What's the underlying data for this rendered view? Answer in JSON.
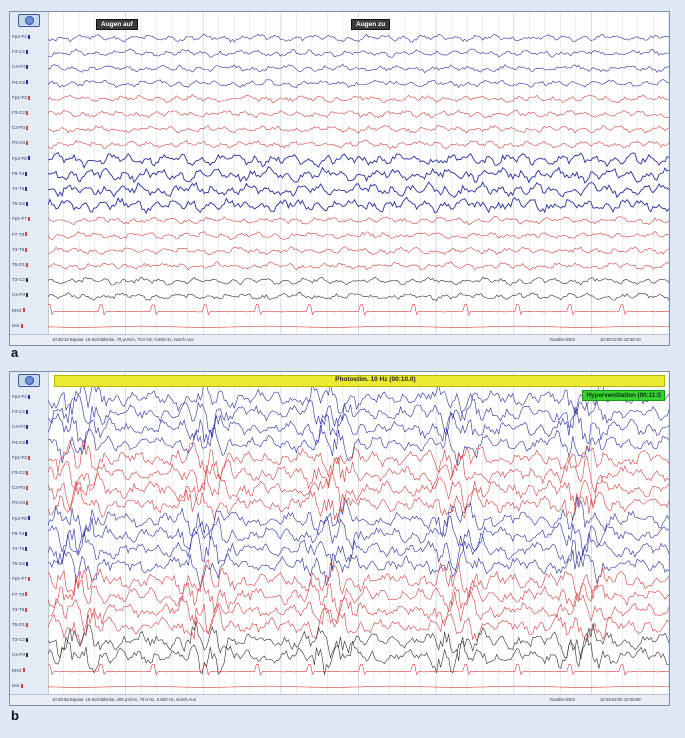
{
  "panel_a": {
    "label": "a",
    "markers": [
      {
        "label": "Augen auf"
      },
      {
        "label": "Augen zu"
      }
    ],
    "channels": [
      "Fp2-F4",
      "F4-C4",
      "C4-P4",
      "P4-O2",
      "Fp1-F3",
      "F3-C3",
      "C3-P3",
      "P3-O1",
      "Fp2-F8",
      "F8-T4",
      "T4-T6",
      "T6-O2",
      "Fp1-F7",
      "F7-T3",
      "T3-T5",
      "T5-O1",
      "T3-C3",
      "C3-P3",
      "EKG",
      "Del.",
      "Del.",
      "Photo Ref"
    ],
    "status_left": "10:30:10 Bipolar, 16 Seit./Blöcke, 70 µV/cm, 70.0 Hz, 0.500 Hz, Notch Aus",
    "status_mid": "Routine EEG",
    "status_right": "10:30:22:00   10:30:10"
  },
  "panel_b": {
    "label": "b",
    "photostim_label": "Photostim. 10 Hz (00:10.0)",
    "hyperventilation_label": "Hyperventilation (00:11:5",
    "channels": [
      "Fp2-F4",
      "F4-C4",
      "C4-P4",
      "P4-O2",
      "Fp1-F3",
      "F3-C3",
      "C3-P3",
      "P3-O1",
      "Fp2-F8",
      "F8-T4",
      "T4-T6",
      "T6-O2",
      "Fp1-F7",
      "F7-T3",
      "T3-T5",
      "T5-O1",
      "T3-C3",
      "C3-P3",
      "EKG",
      "Del.",
      "Del.",
      "Photo Ref"
    ],
    "status_left": "10:28:58 Bipolar, 16 Seit./Blöcke, 200 µV/cm, 70.0 Hz, 0.500 Hz, Notch Aus",
    "status_mid": "Routine EEG",
    "status_right": "10:29:02:00   10:28:58"
  },
  "colors": {
    "blue": "#2a2fa0",
    "red": "#d64040",
    "black": "#2e2e2e",
    "green": "#1f9e2c",
    "grid": "#c9d4e1"
  }
}
